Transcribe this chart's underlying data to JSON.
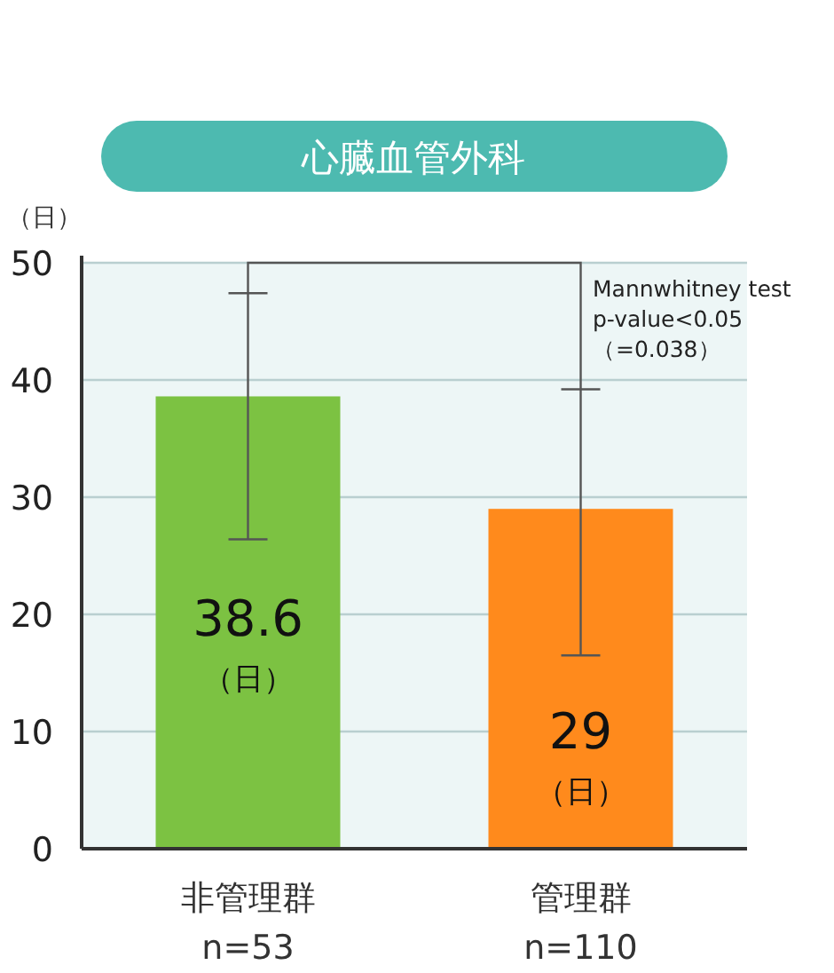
{
  "chart_data": {
    "type": "bar",
    "title": "心臓血管外科",
    "ylabel": "（日）",
    "categories": [
      "非管理群\nn=53",
      "管理群\nn=110"
    ],
    "values": [
      38.6,
      29
    ],
    "colors": [
      "#7cc242",
      "#ff8a1c"
    ],
    "errors": [
      [
        26.4,
        47.4
      ],
      [
        16.5,
        39.2
      ]
    ],
    "value_labels": [
      "38.6\n（日）",
      "29\n（日）"
    ],
    "ylim": [
      0,
      50
    ],
    "yticks": [
      0,
      10,
      20,
      30,
      40,
      50
    ],
    "grid": "y",
    "annotations": [
      "Mannwhitney test\np-value<0.05\n（=0.038）"
    ]
  }
}
